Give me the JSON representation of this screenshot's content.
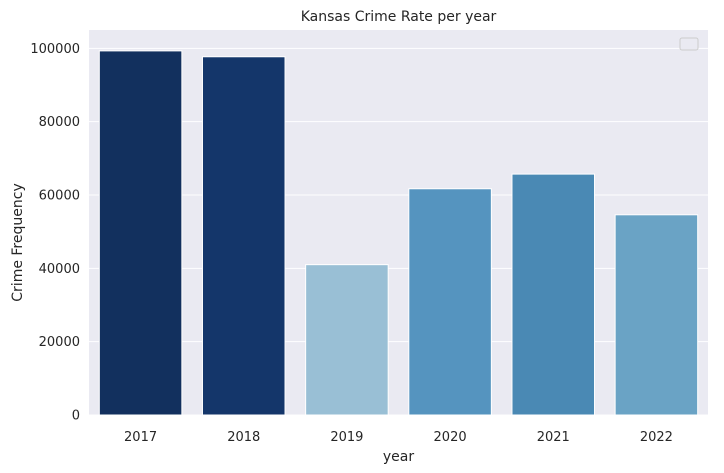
{
  "chart_data": {
    "type": "bar",
    "title": "Kansas Crime Rate per year",
    "xlabel": "year",
    "ylabel": "Crime Frequency",
    "categories": [
      "2017",
      "2018",
      "2019",
      "2020",
      "2021",
      "2022"
    ],
    "values": [
      99300,
      97700,
      41000,
      61700,
      65700,
      54600
    ],
    "colors": [
      "#12305e",
      "#14366a",
      "#99bfd5",
      "#5594bf",
      "#4a89b4",
      "#6aa3c5"
    ],
    "ylim": [
      0,
      105000
    ],
    "yticks": [
      0,
      20000,
      40000,
      60000,
      80000,
      100000
    ],
    "ytick_labels": [
      "0",
      "20000",
      "40000",
      "60000",
      "80000",
      "100000"
    ],
    "grid": true,
    "background_color": "#eaeaf2",
    "legend": "top-right"
  }
}
